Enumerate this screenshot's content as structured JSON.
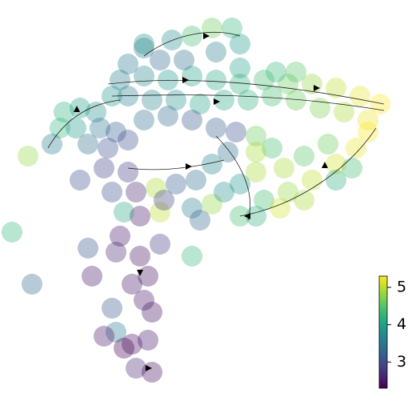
{
  "chart_data": {
    "type": "scatter",
    "cmap": "viridis",
    "xlim": [
      0,
      100
    ],
    "ylim": [
      0,
      100
    ],
    "x": [
      30,
      36,
      42,
      48,
      54,
      60,
      66,
      72,
      78,
      84,
      90,
      95,
      92,
      86,
      80,
      74,
      68,
      62,
      56,
      50,
      44,
      38,
      32,
      28,
      69,
      74,
      60,
      36,
      43,
      48,
      53,
      58,
      60,
      54,
      46,
      40,
      32,
      36,
      16,
      20,
      24,
      15,
      19,
      25,
      29,
      22,
      27,
      32,
      13,
      36,
      42,
      48,
      7,
      54,
      59,
      64,
      68,
      64,
      57,
      53,
      49,
      44,
      39,
      40,
      41,
      48,
      53,
      50,
      56,
      60,
      64,
      66,
      72,
      78,
      84,
      89,
      92,
      82,
      76,
      71,
      60,
      64,
      70,
      76,
      84,
      88,
      20,
      26,
      32,
      28,
      34,
      35,
      30,
      22,
      40,
      35,
      29,
      23,
      33,
      37,
      36,
      38,
      28,
      29,
      26,
      33,
      37,
      34,
      38,
      31,
      3,
      8,
      48,
      31
    ],
    "y": [
      80,
      81,
      80,
      81,
      80,
      79,
      80,
      79,
      79,
      78,
      76,
      74,
      70,
      72,
      73,
      75,
      76,
      75,
      75,
      74,
      75,
      75,
      76,
      76,
      82,
      82,
      83,
      88,
      90,
      91,
      93,
      93,
      89,
      87,
      85,
      85,
      84,
      89,
      72,
      73,
      72,
      68,
      68,
      68,
      67,
      64,
      63,
      65,
      64,
      70,
      71,
      70,
      61,
      68,
      67,
      66,
      63,
      62,
      62,
      59,
      55,
      54,
      53,
      47,
      50,
      48,
      49,
      45,
      52,
      54,
      57,
      50,
      52,
      55,
      59,
      63,
      67,
      64,
      61,
      58,
      46,
      46,
      48,
      50,
      55,
      58,
      55,
      58,
      57,
      52,
      52,
      46,
      41,
      38,
      39,
      36,
      37,
      31,
      29,
      31,
      25,
      22,
      23,
      17,
      16,
      14,
      15,
      8,
      7,
      13,
      42,
      29,
      36,
      47
    ],
    "color_values": [
      3.6,
      3.7,
      3.9,
      4.0,
      4.1,
      4.2,
      4.4,
      4.6,
      4.8,
      5.0,
      5.2,
      5.3,
      5.2,
      4.9,
      4.7,
      4.6,
      4.4,
      4.2,
      4.1,
      4.0,
      3.8,
      3.7,
      3.6,
      3.9,
      4.3,
      4.5,
      4.0,
      3.5,
      3.8,
      4.4,
      4.6,
      4.3,
      3.9,
      3.6,
      3.4,
      3.3,
      3.5,
      3.9,
      4.2,
      4.0,
      3.8,
      4.3,
      3.9,
      3.5,
      3.2,
      3.4,
      3.0,
      3.0,
      3.6,
      3.4,
      3.3,
      3.1,
      4.8,
      3.2,
      3.0,
      4.6,
      4.4,
      4.9,
      3.4,
      3.7,
      3.4,
      3.2,
      4.9,
      5.0,
      2.9,
      3.6,
      4.8,
      3.3,
      3.8,
      3.9,
      4.9,
      4.4,
      4.8,
      5.0,
      5.1,
      5.2,
      5.3,
      4.6,
      4.5,
      4.9,
      4.4,
      4.2,
      5.1,
      4.9,
      4.2,
      4.4,
      3.0,
      2.9,
      2.8,
      3.0,
      2.6,
      2.5,
      2.5,
      3.1,
      2.8,
      2.4,
      2.6,
      2.5,
      2.5,
      2.4,
      2.5,
      2.4,
      3.1,
      3.5,
      2.5,
      2.4,
      2.5,
      2.6,
      2.4,
      2.3,
      4.3,
      3.3,
      4.3,
      4.1
    ],
    "clim": [
      2.3,
      5.3
    ],
    "cticks": [
      3,
      4,
      5
    ]
  }
}
